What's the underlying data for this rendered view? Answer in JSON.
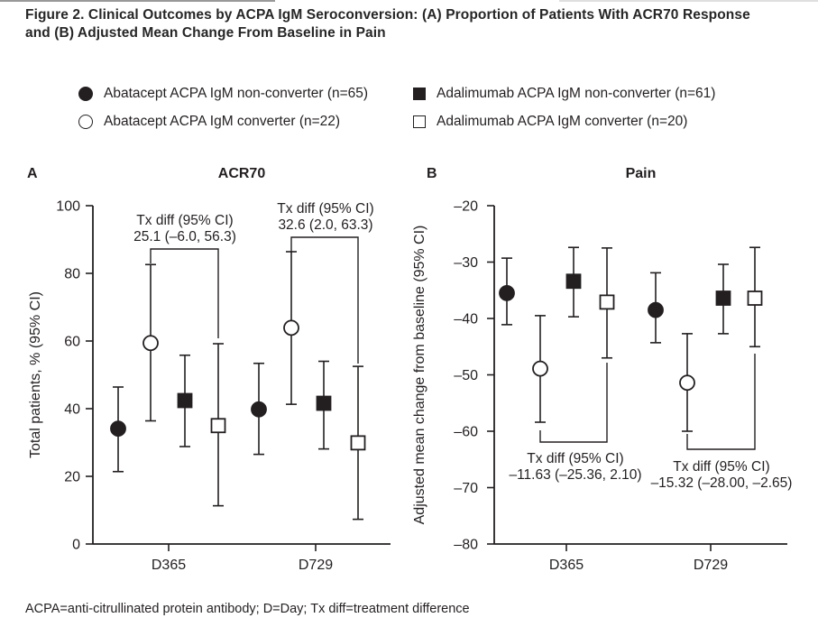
{
  "title": {
    "line1": "Figure 2. Clinical Outcomes by ACPA IgM Seroconversion: (A) Proportion of Patients With ACR70 Response",
    "line2": "and (B) Adjusted Mean Change From Baseline in Pain"
  },
  "legend": {
    "items": [
      {
        "marker": "circle-filled",
        "label": "Abatacept ACPA IgM non-converter (n=65)"
      },
      {
        "marker": "circle-open",
        "label": "Abatacept ACPA IgM converter (n=22)"
      },
      {
        "marker": "square-filled",
        "label": "Adalimumab ACPA IgM non-converter (n=61)"
      },
      {
        "marker": "square-open",
        "label": "Adalimumab ACPA IgM converter (n=20)"
      }
    ]
  },
  "footnote": "ACPA=anti-citrullinated protein antibody; D=Day; Tx diff=treatment difference",
  "colors": {
    "ink": "#231f20",
    "background": "#ffffff"
  },
  "chart_data": [
    {
      "panel_label": "A",
      "type": "scatter",
      "title": "ACR70",
      "ylabel": "Total patients, % (95% CI)",
      "ylim": [
        0,
        100
      ],
      "yticks": [
        0,
        20,
        40,
        60,
        80,
        100
      ],
      "ytick_labels": [
        "0",
        "20",
        "40",
        "60",
        "80",
        "100"
      ],
      "categories": [
        "D365",
        "D729"
      ],
      "series": [
        {
          "name": "Abatacept ACPA IgM non-converter (n=65)",
          "marker": "circle-filled",
          "points": [
            {
              "category": "D365",
              "y": 34.1,
              "ci_low": 21.4,
              "ci_high": 46.4
            },
            {
              "category": "D729",
              "y": 39.8,
              "ci_low": 26.5,
              "ci_high": 53.4
            }
          ]
        },
        {
          "name": "Abatacept ACPA IgM converter (n=22)",
          "marker": "circle-open",
          "points": [
            {
              "category": "D365",
              "y": 59.4,
              "ci_low": 36.4,
              "ci_high": 82.6
            },
            {
              "category": "D729",
              "y": 63.9,
              "ci_low": 41.3,
              "ci_high": 86.4
            }
          ]
        },
        {
          "name": "Adalimumab ACPA IgM non-converter (n=61)",
          "marker": "square-filled",
          "points": [
            {
              "category": "D365",
              "y": 42.4,
              "ci_low": 28.8,
              "ci_high": 55.8
            },
            {
              "category": "D729",
              "y": 41.6,
              "ci_low": 28.1,
              "ci_high": 54.0
            }
          ]
        },
        {
          "name": "Adalimumab ACPA IgM converter (n=20)",
          "marker": "square-open",
          "points": [
            {
              "category": "D365",
              "y": 35.0,
              "ci_low": 11.3,
              "ci_high": 59.2
            },
            {
              "category": "D729",
              "y": 29.9,
              "ci_low": 7.3,
              "ci_high": 52.5
            }
          ]
        }
      ],
      "annotations": [
        {
          "category": "D365",
          "lines": [
            "Tx diff (95% CI)",
            "25.1 (–6.0, 56.3)"
          ]
        },
        {
          "category": "D729",
          "lines": [
            "Tx diff (95% CI)",
            "32.6 (2.0, 63.3)"
          ]
        }
      ]
    },
    {
      "panel_label": "B",
      "type": "scatter",
      "title": "Pain",
      "ylabel": "Adjusted mean change from baseline (95% CI)",
      "ylim": [
        -80,
        -20
      ],
      "yticks": [
        -20,
        -30,
        -40,
        -50,
        -60,
        -70,
        -80
      ],
      "ytick_labels": [
        "–20",
        "–30",
        "–40",
        "–50",
        "–60",
        "–70",
        "–80"
      ],
      "categories": [
        "D365",
        "D729"
      ],
      "series": [
        {
          "name": "Abatacept ACPA IgM non-converter (n=65)",
          "marker": "circle-filled",
          "points": [
            {
              "category": "D365",
              "y": -35.5,
              "ci_low": -41.1,
              "ci_high": -29.3
            },
            {
              "category": "D729",
              "y": -38.5,
              "ci_low": -44.3,
              "ci_high": -31.9
            }
          ]
        },
        {
          "name": "Abatacept ACPA IgM converter (n=22)",
          "marker": "circle-open",
          "points": [
            {
              "category": "D365",
              "y": -48.9,
              "ci_low": -58.4,
              "ci_high": -39.5
            },
            {
              "category": "D729",
              "y": -51.4,
              "ci_low": -60.0,
              "ci_high": -42.7
            }
          ]
        },
        {
          "name": "Adalimumab ACPA IgM non-converter (n=61)",
          "marker": "square-filled",
          "points": [
            {
              "category": "D365",
              "y": -33.4,
              "ci_low": -39.7,
              "ci_high": -27.4
            },
            {
              "category": "D729",
              "y": -36.4,
              "ci_low": -42.7,
              "ci_high": -30.4
            }
          ]
        },
        {
          "name": "Adalimumab ACPA IgM converter (n=20)",
          "marker": "square-open",
          "points": [
            {
              "category": "D365",
              "y": -37.1,
              "ci_low": -47.0,
              "ci_high": -27.5
            },
            {
              "category": "D729",
              "y": -36.4,
              "ci_low": -45.0,
              "ci_high": -27.4
            }
          ]
        }
      ],
      "annotations": [
        {
          "category": "D365",
          "lines": [
            "Tx diff (95% CI)",
            "–11.63 (–25.36, 2.10)"
          ]
        },
        {
          "category": "D729",
          "lines": [
            "Tx diff (95% CI)",
            "–15.32 (–28.00, –2.65)"
          ]
        }
      ]
    }
  ]
}
